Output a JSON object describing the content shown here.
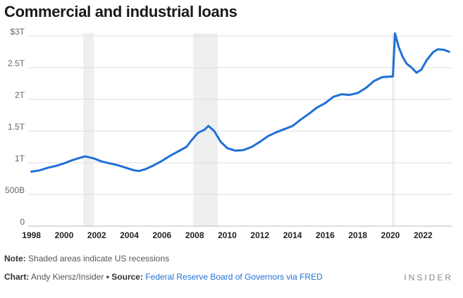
{
  "title": "Commercial and industrial loans",
  "note_label": "Note:",
  "note_text": "Shaded areas indicate US recessions",
  "credit_label": "Chart:",
  "credit_text": "Andy Kiersz/Insider",
  "source_label": "Source:",
  "source_text": "Federal Reserve Board of Governors via FRED",
  "brand": "INSIDER",
  "colors": {
    "line": "#1f6fd6",
    "recession": "#efefef",
    "grid": "#dddddd",
    "baseline": "#bbbbbb"
  },
  "chart_data": {
    "type": "line",
    "title": "Commercial and industrial loans",
    "xlabel": "",
    "ylabel": "",
    "xlim": [
      1997.8,
      2023.8
    ],
    "ylim": [
      0,
      3
    ],
    "y_unit": "trillions of dollars",
    "grid": true,
    "legend": "none",
    "x_ticks": [
      {
        "value": 1998,
        "label": "1998"
      },
      {
        "value": 2000,
        "label": "2000"
      },
      {
        "value": 2002,
        "label": "2002"
      },
      {
        "value": 2004,
        "label": "2004"
      },
      {
        "value": 2006,
        "label": "2006"
      },
      {
        "value": 2008,
        "label": "2008"
      },
      {
        "value": 2010,
        "label": "2010"
      },
      {
        "value": 2012,
        "label": "2012"
      },
      {
        "value": 2014,
        "label": "2014"
      },
      {
        "value": 2016,
        "label": "2016"
      },
      {
        "value": 2018,
        "label": "2018"
      },
      {
        "value": 2020,
        "label": "2020"
      },
      {
        "value": 2022,
        "label": "2022"
      }
    ],
    "y_ticks": [
      {
        "value": 0,
        "label": "0"
      },
      {
        "value": 0.5,
        "label": "500B"
      },
      {
        "value": 1,
        "label": "1T"
      },
      {
        "value": 1.5,
        "label": "1.5T"
      },
      {
        "value": 2,
        "label": "2T"
      },
      {
        "value": 2.5,
        "label": "2.5T"
      },
      {
        "value": 3,
        "label": "$3T"
      }
    ],
    "recessions": [
      {
        "start": 2001.17,
        "end": 2001.83
      },
      {
        "start": 2007.92,
        "end": 2009.42
      },
      {
        "start": 2020.08,
        "end": 2020.25
      }
    ],
    "series": [
      {
        "values": [
          [
            1998.0,
            0.86
          ],
          [
            1998.5,
            0.88
          ],
          [
            1999.0,
            0.92
          ],
          [
            1999.5,
            0.95
          ],
          [
            2000.0,
            0.99
          ],
          [
            2000.5,
            1.04
          ],
          [
            2001.0,
            1.08
          ],
          [
            2001.3,
            1.1
          ],
          [
            2001.8,
            1.07
          ],
          [
            2002.3,
            1.02
          ],
          [
            2002.8,
            0.99
          ],
          [
            2003.3,
            0.96
          ],
          [
            2003.8,
            0.92
          ],
          [
            2004.3,
            0.88
          ],
          [
            2004.6,
            0.87
          ],
          [
            2005.0,
            0.9
          ],
          [
            2005.5,
            0.96
          ],
          [
            2006.0,
            1.03
          ],
          [
            2006.5,
            1.11
          ],
          [
            2007.0,
            1.18
          ],
          [
            2007.5,
            1.25
          ],
          [
            2007.8,
            1.35
          ],
          [
            2008.2,
            1.47
          ],
          [
            2008.6,
            1.52
          ],
          [
            2008.85,
            1.58
          ],
          [
            2009.2,
            1.5
          ],
          [
            2009.6,
            1.33
          ],
          [
            2010.0,
            1.23
          ],
          [
            2010.5,
            1.19
          ],
          [
            2011.0,
            1.2
          ],
          [
            2011.5,
            1.25
          ],
          [
            2012.0,
            1.33
          ],
          [
            2012.5,
            1.42
          ],
          [
            2013.0,
            1.48
          ],
          [
            2013.5,
            1.53
          ],
          [
            2014.0,
            1.58
          ],
          [
            2014.5,
            1.68
          ],
          [
            2015.0,
            1.77
          ],
          [
            2015.5,
            1.87
          ],
          [
            2016.0,
            1.94
          ],
          [
            2016.5,
            2.04
          ],
          [
            2017.0,
            2.08
          ],
          [
            2017.5,
            2.07
          ],
          [
            2018.0,
            2.1
          ],
          [
            2018.5,
            2.18
          ],
          [
            2019.0,
            2.29
          ],
          [
            2019.5,
            2.35
          ],
          [
            2020.0,
            2.36
          ],
          [
            2020.15,
            2.36
          ],
          [
            2020.28,
            3.04
          ],
          [
            2020.5,
            2.83
          ],
          [
            2020.75,
            2.67
          ],
          [
            2021.0,
            2.56
          ],
          [
            2021.3,
            2.5
          ],
          [
            2021.6,
            2.42
          ],
          [
            2021.9,
            2.47
          ],
          [
            2022.2,
            2.61
          ],
          [
            2022.6,
            2.74
          ],
          [
            2022.9,
            2.79
          ],
          [
            2023.3,
            2.78
          ],
          [
            2023.6,
            2.75
          ]
        ]
      }
    ]
  }
}
